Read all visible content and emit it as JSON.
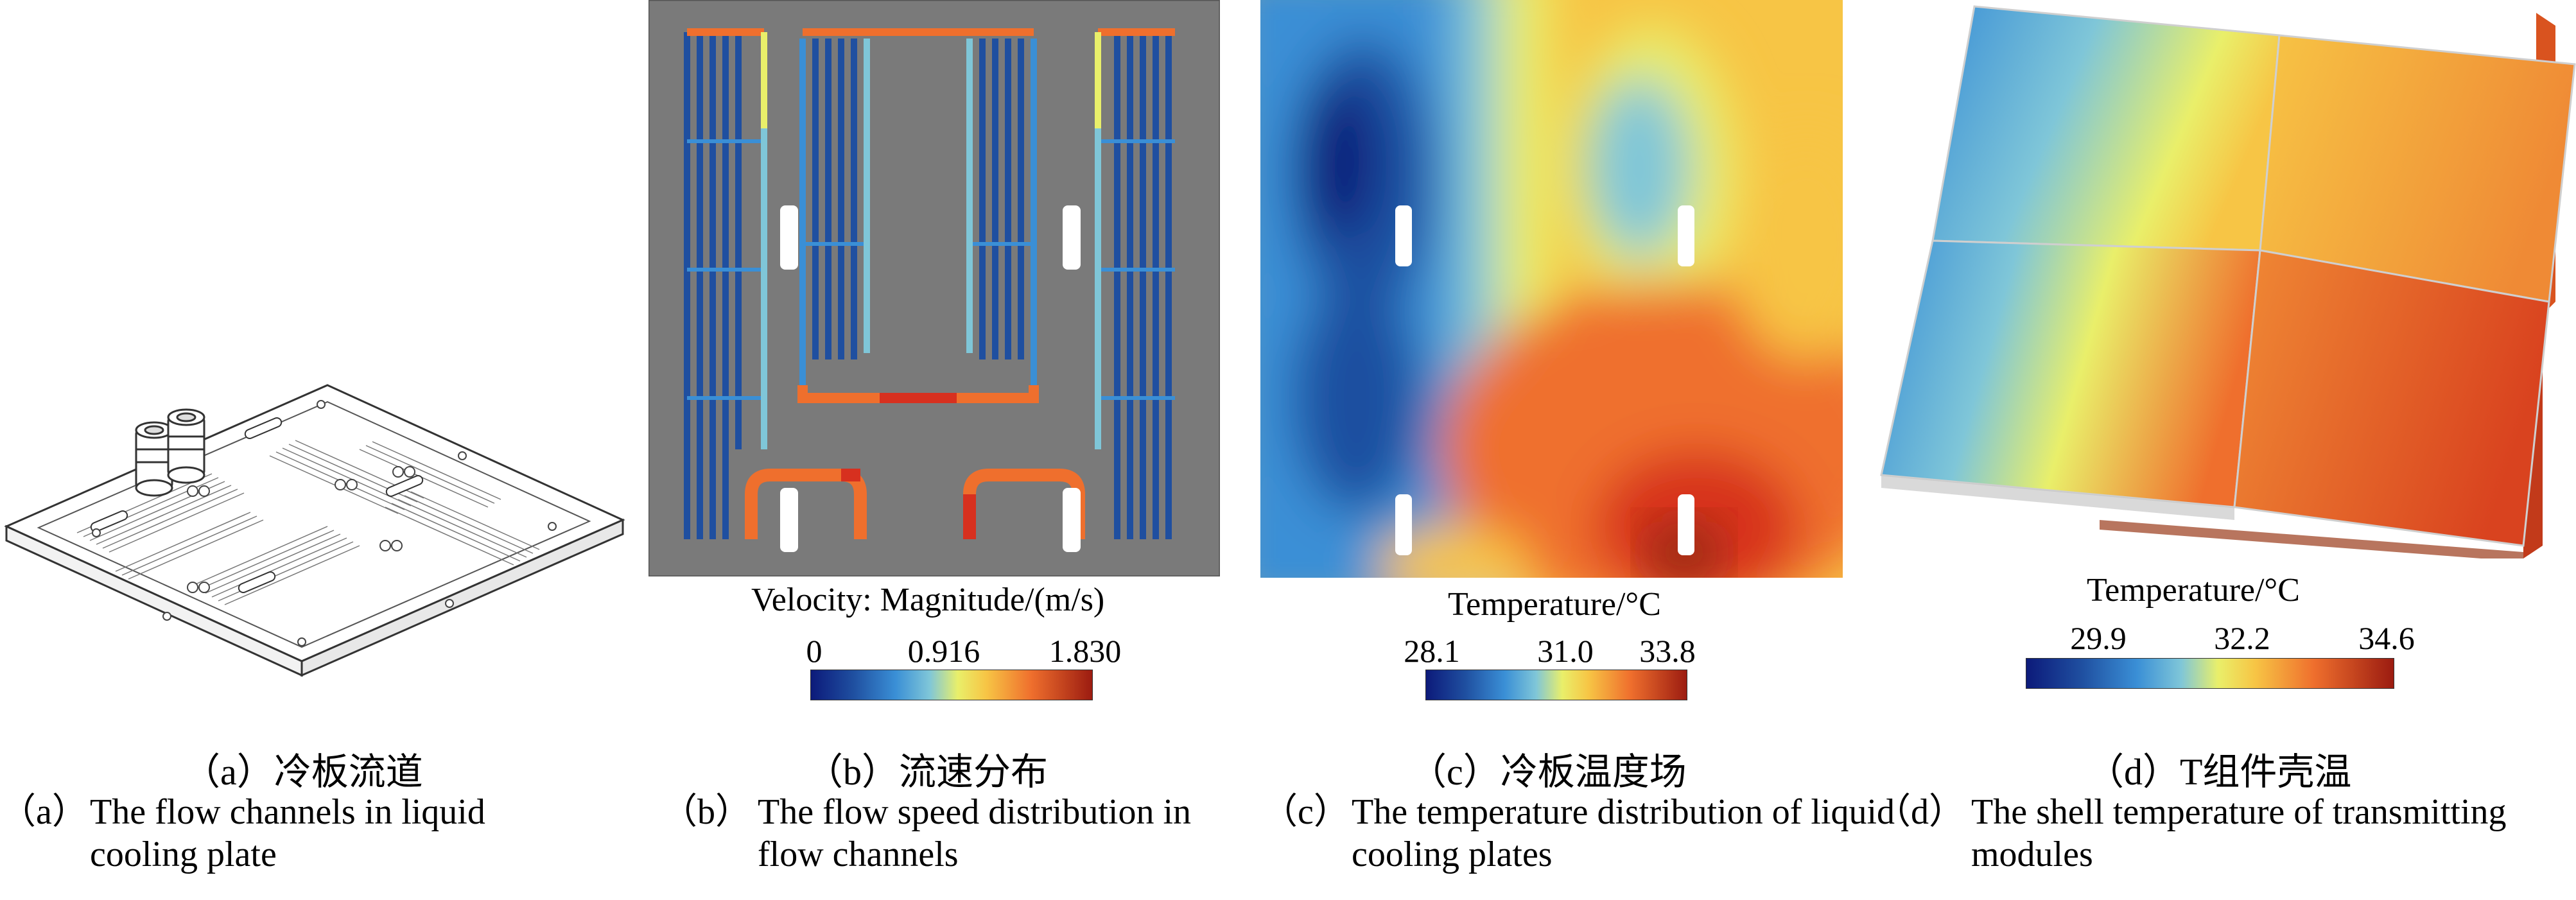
{
  "panels": [
    {
      "id": "a",
      "caption_cn": "（a）冷板流道",
      "caption_en_label": "（a）",
      "caption_en_text": "The flow channels in liquid cooling plate"
    },
    {
      "id": "b",
      "legend_title": "Velocity: Magnitude/(m/s)",
      "ticks": [
        "0",
        "0.916",
        "1.830"
      ],
      "caption_cn": "（b）流速分布",
      "caption_en_label": "（b）",
      "caption_en_text": "The flow speed distribution in flow channels"
    },
    {
      "id": "c",
      "legend_title": "Temperature/°C",
      "ticks": [
        "28.1",
        "31.0",
        "33.8"
      ],
      "caption_cn": "（c）冷板温度场",
      "caption_en_label": "（c）",
      "caption_en_text": "The temperature distribution of liquid cooling plates"
    },
    {
      "id": "d",
      "legend_title": "Temperature/°C",
      "ticks": [
        "29.9",
        "32.2",
        "34.6"
      ],
      "caption_cn": "（d）T组件壳温",
      "caption_en_label": "（d）",
      "caption_en_text": "The shell temperature of transmitting modules"
    }
  ],
  "colors": {
    "background_gray": "#7a7a7a",
    "cold_blue": "#1f4fa0",
    "mid_yellow": "#f2e64a",
    "hot_red": "#d7301f"
  }
}
